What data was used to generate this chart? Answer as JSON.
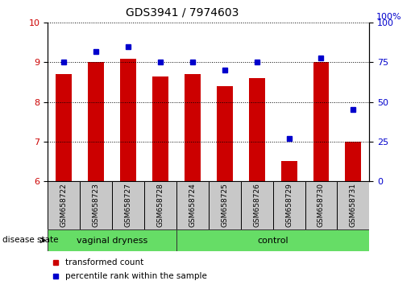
{
  "title": "GDS3941 / 7974603",
  "samples": [
    "GSM658722",
    "GSM658723",
    "GSM658727",
    "GSM658728",
    "GSM658724",
    "GSM658725",
    "GSM658726",
    "GSM658729",
    "GSM658730",
    "GSM658731"
  ],
  "red_values": [
    8.7,
    9.0,
    9.1,
    8.65,
    8.7,
    8.4,
    8.6,
    6.5,
    9.0,
    7.0
  ],
  "blue_values": [
    75,
    82,
    85,
    75,
    75,
    70,
    75,
    27,
    78,
    45
  ],
  "ylim_left": [
    6,
    10
  ],
  "ylim_right": [
    0,
    100
  ],
  "yticks_left": [
    6,
    7,
    8,
    9,
    10
  ],
  "yticks_right": [
    0,
    25,
    50,
    75,
    100
  ],
  "red_color": "#CC0000",
  "blue_color": "#0000CC",
  "bar_width": 0.5,
  "label_bg": "#c8c8c8",
  "group_color": "#66dd66",
  "vaginal_label": "vaginal dryness",
  "control_label": "control",
  "disease_state_label": "disease state",
  "legend_red": "transformed count",
  "legend_blue": "percentile rank within the sample",
  "right_axis_top_label": "100%"
}
